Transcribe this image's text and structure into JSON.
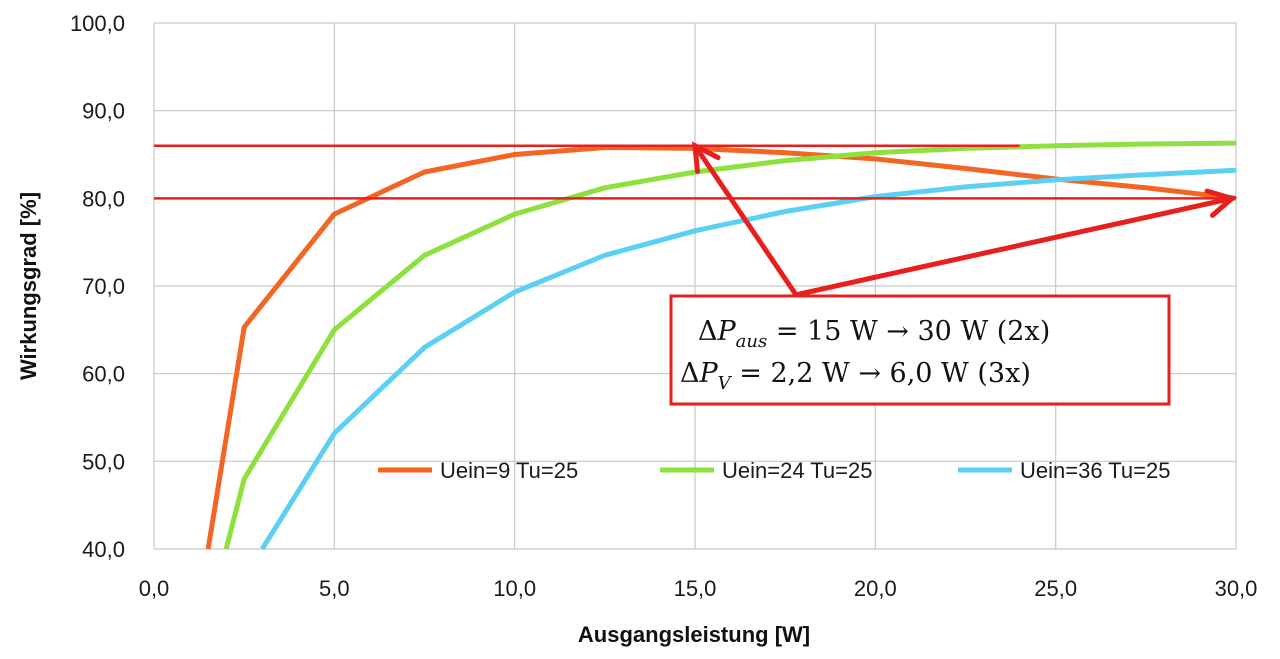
{
  "colors": {
    "series_9v": "#f26522",
    "series_24v": "#8ee03c",
    "series_36v": "#5bd0f2",
    "highlight": "#e8201d",
    "grid": "#c8c8c8"
  },
  "chart_data": {
    "type": "line",
    "title": "",
    "xlabel": "Ausgangsleistung [W]",
    "ylabel": "Wirkungsgrad [%]",
    "xlim": [
      0,
      30
    ],
    "ylim": [
      40,
      100
    ],
    "grid": true,
    "legend_position": "bottom-right (inside plot)",
    "x_ticks": [
      {
        "value": 0,
        "label": "0,0"
      },
      {
        "value": 5,
        "label": "5,0"
      },
      {
        "value": 10,
        "label": "10,0"
      },
      {
        "value": 15,
        "label": "15,0"
      },
      {
        "value": 20,
        "label": "20,0"
      },
      {
        "value": 25,
        "label": "25,0"
      },
      {
        "value": 30,
        "label": "30,0"
      }
    ],
    "y_ticks": [
      {
        "value": 40,
        "label": "40,0"
      },
      {
        "value": 50,
        "label": "50,0"
      },
      {
        "value": 60,
        "label": "60,0"
      },
      {
        "value": 70,
        "label": "70,0"
      },
      {
        "value": 80,
        "label": "80,0"
      },
      {
        "value": 90,
        "label": "90,0"
      },
      {
        "value": 100,
        "label": "100,0"
      }
    ],
    "series": [
      {
        "name": "Uein=9 Tu=25",
        "color": "#f26522",
        "points": [
          [
            1.5,
            40
          ],
          [
            2.5,
            65.3
          ],
          [
            5,
            78.2
          ],
          [
            7.5,
            83
          ],
          [
            10,
            85
          ],
          [
            12.5,
            85.8
          ],
          [
            15,
            85.7
          ],
          [
            17.5,
            85.2
          ],
          [
            20,
            84.5
          ],
          [
            22.5,
            83.4
          ],
          [
            25,
            82.2
          ],
          [
            27.5,
            81.2
          ],
          [
            30,
            80
          ]
        ]
      },
      {
        "name": "Uein=24 Tu=25",
        "color": "#8ee03c",
        "points": [
          [
            2,
            40
          ],
          [
            2.5,
            48
          ],
          [
            5,
            65
          ],
          [
            7.5,
            73.5
          ],
          [
            10,
            78.2
          ],
          [
            12.5,
            81.2
          ],
          [
            15,
            83
          ],
          [
            17.5,
            84.3
          ],
          [
            20,
            85.2
          ],
          [
            22.5,
            85.7
          ],
          [
            25,
            86
          ],
          [
            27.5,
            86.2
          ],
          [
            30,
            86.3
          ]
        ]
      },
      {
        "name": "Uein=36 Tu=25",
        "color": "#5bd0f2",
        "points": [
          [
            3,
            40
          ],
          [
            5,
            53.2
          ],
          [
            7.5,
            63
          ],
          [
            10,
            69.3
          ],
          [
            12.5,
            73.5
          ],
          [
            15,
            76.3
          ],
          [
            17.5,
            78.5
          ],
          [
            20,
            80.2
          ],
          [
            22.5,
            81.3
          ],
          [
            25,
            82.1
          ],
          [
            27.5,
            82.7
          ],
          [
            30,
            83.2
          ]
        ]
      }
    ],
    "reference_lines": [
      {
        "y": 86,
        "x_from": 0,
        "x_to": 24
      },
      {
        "y": 80,
        "x_from": 0,
        "x_to": 30
      }
    ],
    "annotation": {
      "line1": {
        "delta": "Δ",
        "var": "P",
        "sub": "aus",
        "rest": " = 15 W  → 30 W (2x)"
      },
      "line2": {
        "delta": "Δ",
        "var": "P",
        "sub": "V",
        "rest": " = 2,2 W → 6,0 W (3x)"
      },
      "arrow_origin": [
        17.8,
        69
      ],
      "arrow_targets": [
        [
          15,
          86
        ],
        [
          30,
          80
        ]
      ]
    }
  }
}
